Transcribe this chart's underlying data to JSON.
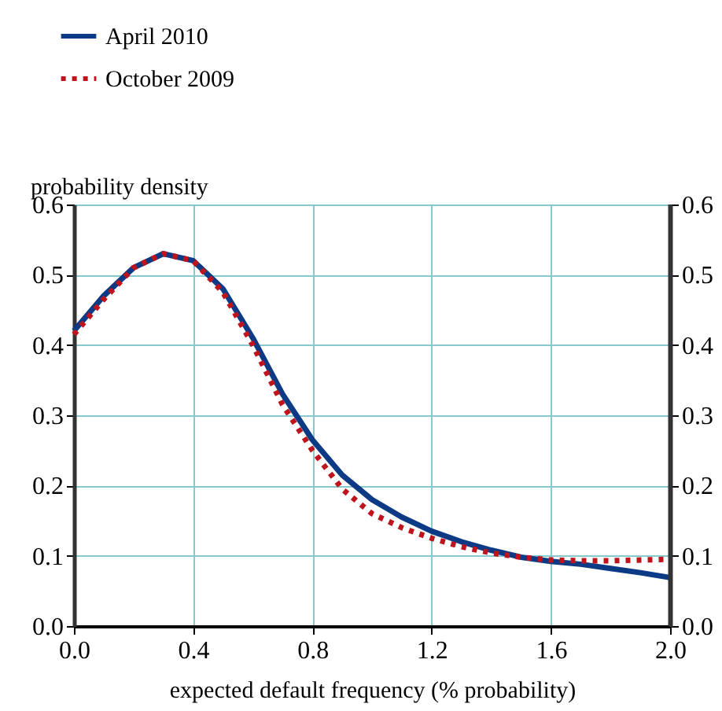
{
  "chart_data": {
    "type": "line",
    "xlabel": "expected default frequency (% probability)",
    "ylabel": "probability density",
    "xlim": [
      0,
      2
    ],
    "xticks": [
      {
        "value": 0,
        "label": "0.0"
      },
      0.4,
      0.8,
      1.2,
      1.6,
      {
        "value": 2,
        "label": "2.0"
      }
    ],
    "ylim": [
      0,
      0.6
    ],
    "yticks": [
      {
        "value": 0,
        "label": "0.0"
      },
      0.1,
      0.2,
      0.3,
      0.4,
      0.5,
      0.6
    ],
    "y2lim": [
      0,
      0.6
    ],
    "y2ticks": [
      {
        "value": 0,
        "label": "0.0"
      },
      0.1,
      0.2,
      0.3,
      0.4,
      0.5,
      0.6
    ],
    "grid": true,
    "legend": "top left",
    "series": [
      {
        "name": "April 2010",
        "color": "#0d3a85",
        "line_style": "solid",
        "x": [
          0,
          0.1,
          0.2,
          0.3,
          0.4,
          0.5,
          0.6,
          0.7,
          0.8,
          0.9,
          1.0,
          1.1,
          1.2,
          1.3,
          1.4,
          1.5,
          1.6,
          1.7,
          1.8,
          1.9,
          2.0
        ],
        "values": [
          0.42,
          0.47,
          0.51,
          0.53,
          0.52,
          0.48,
          0.41,
          0.33,
          0.265,
          0.215,
          0.18,
          0.155,
          0.135,
          0.12,
          0.108,
          0.098,
          0.092,
          0.088,
          0.082,
          0.076,
          0.069
        ]
      },
      {
        "name": "October 2009",
        "color": "#c0141c",
        "line_style": "dotted",
        "x": [
          0,
          0.1,
          0.2,
          0.3,
          0.4,
          0.5,
          0.6,
          0.7,
          0.8,
          0.9,
          1.0,
          1.1,
          1.2,
          1.3,
          1.4,
          1.5,
          1.6,
          1.7,
          1.8,
          1.9,
          2.0
        ],
        "values": [
          0.415,
          0.465,
          0.51,
          0.53,
          0.52,
          0.475,
          0.4,
          0.315,
          0.25,
          0.195,
          0.16,
          0.14,
          0.125,
          0.113,
          0.104,
          0.098,
          0.094,
          0.093,
          0.093,
          0.094,
          0.095
        ]
      }
    ]
  }
}
